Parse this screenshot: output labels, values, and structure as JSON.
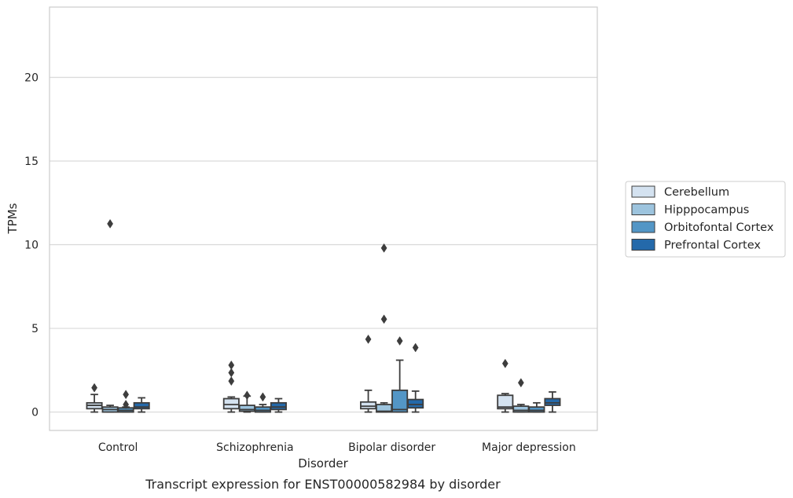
{
  "chart_data": {
    "type": "box",
    "title": "",
    "caption": "Transcript expression for ENST00000582984 by disorder",
    "xlabel": "Disorder",
    "ylabel": "TPMs",
    "ylim": [
      -1.1,
      24.2
    ],
    "yticks": [
      0,
      5,
      10,
      15,
      20
    ],
    "grid": "horizontal",
    "legend_position": "right-center",
    "colors": [
      "#d4e2f0",
      "#9dc4de",
      "#5396c6",
      "#2469aa"
    ],
    "categories": [
      "Control",
      "Schizophrenia",
      "Bipolar disorder",
      "Major depression"
    ],
    "series": [
      {
        "name": "Cerebellum",
        "boxes": [
          {
            "whisker_low": 0.0,
            "q1": 0.2,
            "median": 0.4,
            "q3": 0.55,
            "whisker_high": 1.05,
            "outliers": [
              1.45
            ]
          },
          {
            "whisker_low": 0.0,
            "q1": 0.2,
            "median": 0.45,
            "q3": 0.8,
            "whisker_high": 0.9,
            "outliers": [
              1.85,
              2.35,
              2.8
            ]
          },
          {
            "whisker_low": 0.0,
            "q1": 0.2,
            "median": 0.35,
            "q3": 0.6,
            "whisker_high": 1.3,
            "outliers": [
              4.35
            ]
          },
          {
            "whisker_low": 0.0,
            "q1": 0.2,
            "median": 0.3,
            "q3": 1.0,
            "whisker_high": 1.1,
            "outliers": [
              2.9
            ]
          }
        ]
      },
      {
        "name": "Hipppocampus",
        "boxes": [
          {
            "whisker_low": 0.0,
            "q1": 0.0,
            "median": 0.15,
            "q3": 0.3,
            "whisker_high": 0.4,
            "outliers": [
              11.25
            ]
          },
          {
            "whisker_low": 0.0,
            "q1": 0.05,
            "median": 0.15,
            "q3": 0.4,
            "whisker_high": 0.95,
            "outliers": [
              1.0
            ]
          },
          {
            "whisker_low": 0.0,
            "q1": 0.0,
            "median": 0.05,
            "q3": 0.45,
            "whisker_high": 0.55,
            "outliers": [
              5.55,
              9.8
            ]
          },
          {
            "whisker_low": 0.0,
            "q1": 0.0,
            "median": 0.1,
            "q3": 0.35,
            "whisker_high": 0.45,
            "outliers": [
              1.75
            ]
          }
        ]
      },
      {
        "name": "Orbitofontal Cortex",
        "boxes": [
          {
            "whisker_low": 0.0,
            "q1": 0.0,
            "median": 0.1,
            "q3": 0.25,
            "whisker_high": 0.3,
            "outliers": [
              0.45,
              1.05
            ]
          },
          {
            "whisker_low": 0.0,
            "q1": 0.0,
            "median": 0.1,
            "q3": 0.3,
            "whisker_high": 0.45,
            "outliers": [
              0.9
            ]
          },
          {
            "whisker_low": 0.0,
            "q1": 0.0,
            "median": 0.15,
            "q3": 1.3,
            "whisker_high": 3.1,
            "outliers": [
              4.25
            ]
          },
          {
            "whisker_low": 0.0,
            "q1": 0.0,
            "median": 0.1,
            "q3": 0.3,
            "whisker_high": 0.55,
            "outliers": []
          }
        ]
      },
      {
        "name": "Prefrontal Cortex",
        "boxes": [
          {
            "whisker_low": 0.0,
            "q1": 0.2,
            "median": 0.3,
            "q3": 0.55,
            "whisker_high": 0.85,
            "outliers": []
          },
          {
            "whisker_low": 0.0,
            "q1": 0.15,
            "median": 0.3,
            "q3": 0.55,
            "whisker_high": 0.8,
            "outliers": []
          },
          {
            "whisker_low": 0.0,
            "q1": 0.25,
            "median": 0.45,
            "q3": 0.75,
            "whisker_high": 1.25,
            "outliers": [
              3.85
            ]
          },
          {
            "whisker_low": 0.0,
            "q1": 0.4,
            "median": 0.55,
            "q3": 0.8,
            "whisker_high": 1.2,
            "outliers": []
          }
        ]
      }
    ]
  }
}
